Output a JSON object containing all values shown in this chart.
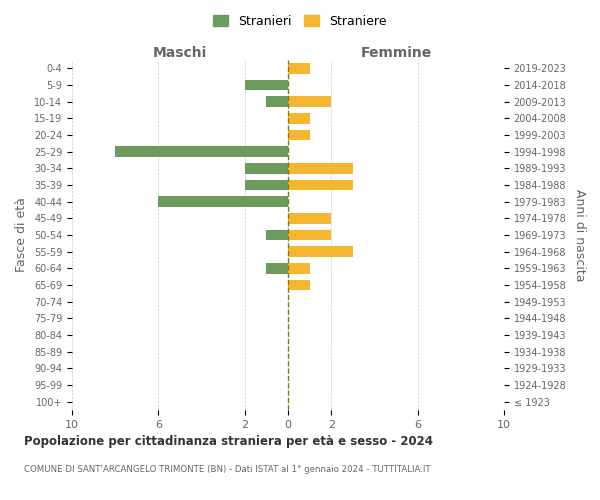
{
  "age_groups": [
    "100+",
    "95-99",
    "90-94",
    "85-89",
    "80-84",
    "75-79",
    "70-74",
    "65-69",
    "60-64",
    "55-59",
    "50-54",
    "45-49",
    "40-44",
    "35-39",
    "30-34",
    "25-29",
    "20-24",
    "15-19",
    "10-14",
    "5-9",
    "0-4"
  ],
  "birth_years": [
    "≤ 1923",
    "1924-1928",
    "1929-1933",
    "1934-1938",
    "1939-1943",
    "1944-1948",
    "1949-1953",
    "1954-1958",
    "1959-1963",
    "1964-1968",
    "1969-1973",
    "1974-1978",
    "1979-1983",
    "1984-1988",
    "1989-1993",
    "1994-1998",
    "1999-2003",
    "2004-2008",
    "2009-2013",
    "2014-2018",
    "2019-2023"
  ],
  "maschi": [
    0,
    0,
    0,
    0,
    0,
    0,
    0,
    0,
    1,
    0,
    1,
    0,
    6,
    2,
    2,
    8,
    0,
    0,
    1,
    2,
    0
  ],
  "femmine": [
    0,
    0,
    0,
    0,
    0,
    0,
    0,
    1,
    1,
    3,
    2,
    2,
    0,
    3,
    3,
    0,
    1,
    1,
    2,
    0,
    1
  ],
  "color_maschi": "#6d9b5e",
  "color_femmine": "#f5b731",
  "xlim": 10,
  "title": "Popolazione per cittadinanza straniera per età e sesso - 2024",
  "subtitle": "COMUNE DI SANT'ARCANGELO TRIMONTE (BN) - Dati ISTAT al 1° gennaio 2024 - TUTTITALIA.IT",
  "xlabel_maschi": "Maschi",
  "xlabel_femmine": "Femmine",
  "ylabel": "Fasce di età",
  "ylabel_right": "Anni di nascita",
  "legend_maschi": "Stranieri",
  "legend_femmine": "Straniere",
  "bg_color": "#ffffff",
  "grid_color": "#cccccc",
  "text_color": "#666666",
  "center_line_color": "#808000"
}
